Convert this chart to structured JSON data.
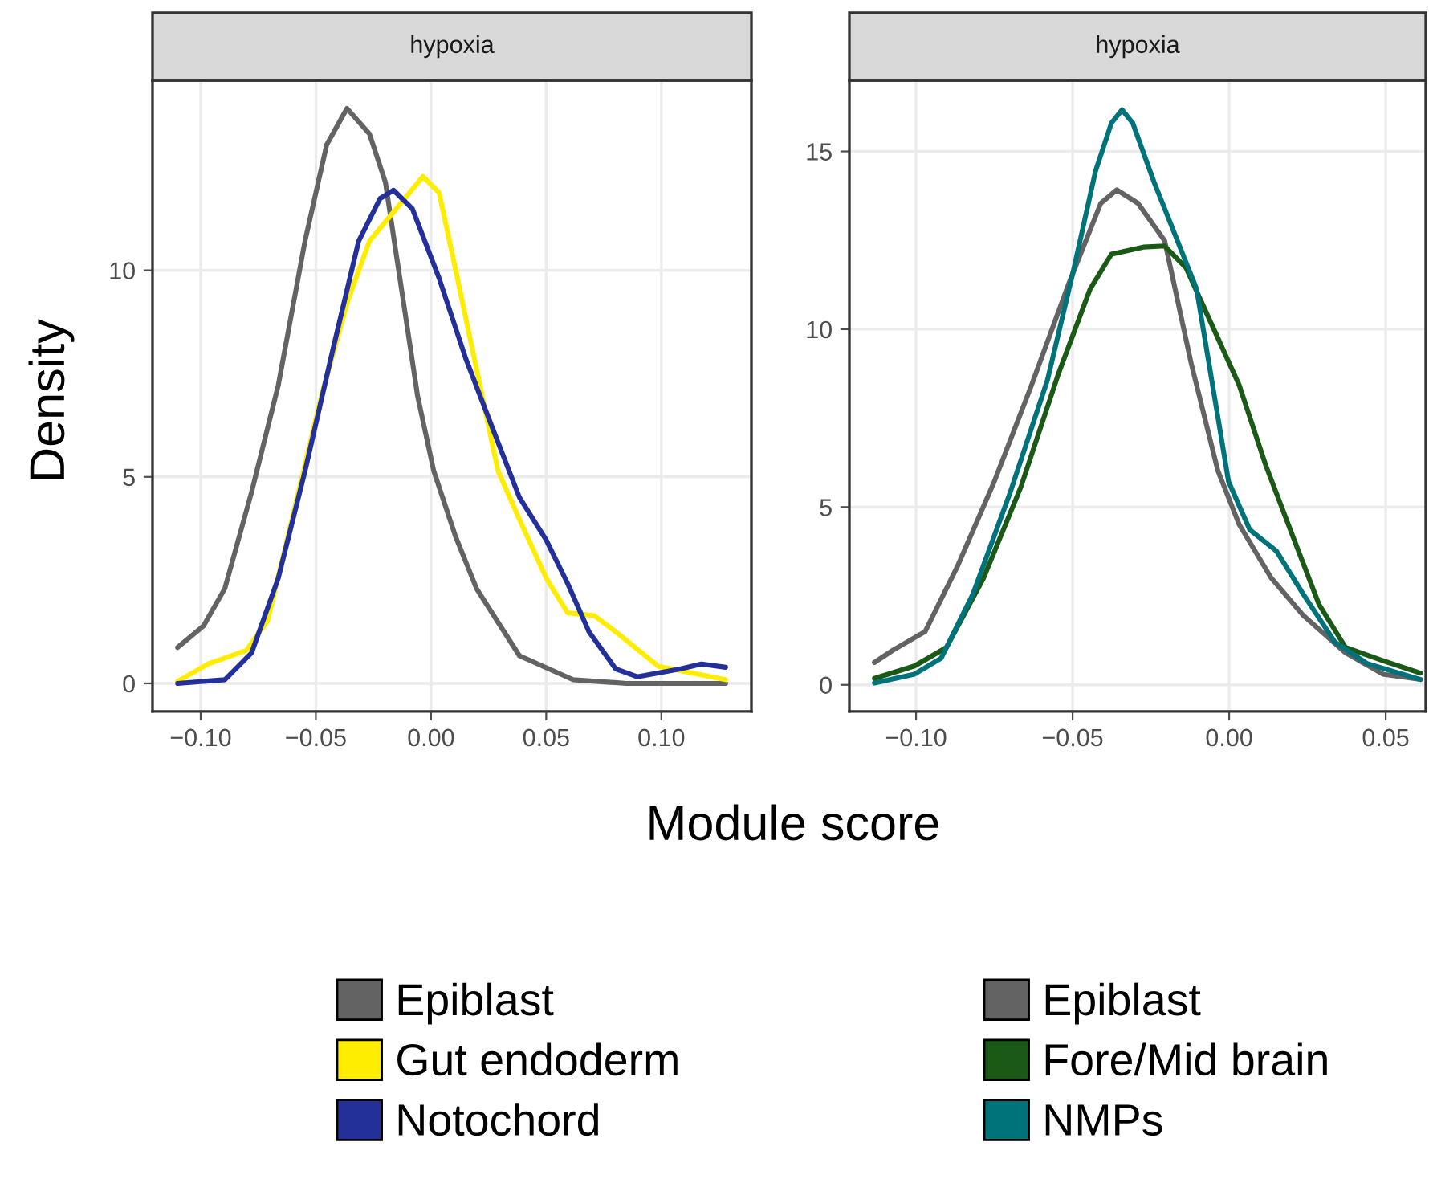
{
  "chart_data": [
    {
      "type": "line",
      "title": "hypoxia",
      "xlabel": "Module score",
      "ylabel": "Density",
      "legend": "bottom",
      "grid": true,
      "xlim": [
        -0.1209,
        0.1391
      ],
      "ylim": [
        -0.68,
        14.6
      ],
      "xticks": [
        {
          "value": -0.1,
          "label": "−0.10"
        },
        {
          "value": -0.05,
          "label": "−0.05"
        },
        {
          "value": 0.0,
          "label": "0.00"
        },
        {
          "value": 0.05,
          "label": "0.05"
        },
        {
          "value": 0.1,
          "label": "0.10"
        }
      ],
      "yticks": [
        0,
        5,
        10
      ],
      "series": [
        {
          "name": "Epiblast",
          "color": "#636363",
          "x": [
            -0.11,
            -0.0988,
            -0.0895,
            -0.0779,
            -0.0663,
            -0.0547,
            -0.0453,
            -0.0365,
            -0.0267,
            -0.0198,
            -0.0128,
            -0.0058,
            0.0012,
            0.0105,
            0.0198,
            0.0384,
            0.0616,
            0.0849,
            0.1279
          ],
          "values": [
            0.87,
            1.39,
            2.3,
            4.63,
            7.22,
            10.71,
            13.04,
            13.92,
            13.3,
            12.13,
            9.54,
            6.95,
            5.14,
            3.58,
            2.29,
            0.67,
            0.09,
            0,
            0
          ]
        },
        {
          "name": "Gut endoderm",
          "color": "#ffed00",
          "x": [
            -0.11,
            -0.0965,
            -0.0802,
            -0.0709,
            -0.0593,
            -0.0477,
            -0.036,
            -0.0267,
            -0.0151,
            -0.0035,
            0.0035,
            0.0105,
            0.0198,
            0.0291,
            0.0384,
            0.05,
            0.0593,
            0.0709,
            0.0802,
            0.0988,
            0.1279
          ],
          "values": [
            0.05,
            0.48,
            0.8,
            1.52,
            4.22,
            6.94,
            9.29,
            10.71,
            11.49,
            12.27,
            11.88,
            10.06,
            7.6,
            5.14,
            3.97,
            2.55,
            1.71,
            1.64,
            1.25,
            0.41,
            0.09
          ]
        },
        {
          "name": "Notochord",
          "color": "#24309a",
          "x": [
            -0.11,
            -0.0895,
            -0.0779,
            -0.0663,
            -0.0547,
            -0.043,
            -0.0314,
            -0.0221,
            -0.0163,
            -0.0081,
            0.0035,
            0.0151,
            0.0267,
            0.0384,
            0.05,
            0.0593,
            0.0686,
            0.0802,
            0.0895,
            0.1081,
            0.1174,
            0.1279
          ],
          "values": [
            0,
            0.09,
            0.74,
            2.55,
            5.14,
            7.99,
            10.71,
            11.74,
            11.94,
            11.49,
            9.81,
            7.86,
            6.18,
            4.5,
            3.47,
            2.42,
            1.25,
            0.35,
            0.16,
            0.35,
            0.47,
            0.39
          ]
        }
      ]
    },
    {
      "type": "line",
      "title": "hypoxia",
      "legend": "bottom",
      "grid": true,
      "xlim": [
        -0.1213,
        0.0628
      ],
      "ylim": [
        -0.75,
        17.0
      ],
      "xticks": [
        {
          "value": -0.1,
          "label": "−0.10"
        },
        {
          "value": -0.05,
          "label": "−0.05"
        },
        {
          "value": 0.0,
          "label": "0.00"
        },
        {
          "value": 0.05,
          "label": "0.05"
        }
      ],
      "yticks": [
        0,
        5,
        10,
        15
      ],
      "series": [
        {
          "name": "Epiblast",
          "color": "#636363",
          "x": [
            -0.1133,
            -0.1073,
            -0.0971,
            -0.0869,
            -0.075,
            -0.0631,
            -0.0512,
            -0.041,
            -0.0359,
            -0.0291,
            -0.0206,
            -0.0121,
            -0.0036,
            0.0032,
            0.0134,
            0.0236,
            0.0372,
            0.0491,
            0.0611
          ],
          "values": [
            0.63,
            0.98,
            1.5,
            3.31,
            5.72,
            8.43,
            11.29,
            13.54,
            13.92,
            13.54,
            12.49,
            9.03,
            6.02,
            4.51,
            3.01,
            1.96,
            0.9,
            0.3,
            0.15
          ]
        },
        {
          "name": "Fore/Mid brain",
          "color": "#1a5a16",
          "x": [
            -0.1133,
            -0.1005,
            -0.0903,
            -0.0784,
            -0.0665,
            -0.0546,
            -0.0444,
            -0.0376,
            -0.0274,
            -0.0206,
            -0.0138,
            -0.0053,
            0.0032,
            0.0117,
            0.0202,
            0.0287,
            0.0372,
            0.0491,
            0.0611
          ],
          "values": [
            0.18,
            0.53,
            1.05,
            3.01,
            5.57,
            8.73,
            11.13,
            12.11,
            12.31,
            12.34,
            11.73,
            10.08,
            8.43,
            6.17,
            4.21,
            2.26,
            1.05,
            0.68,
            0.33
          ]
        },
        {
          "name": "NMPs",
          "color": "#00727a",
          "x": [
            -0.1133,
            -0.1005,
            -0.092,
            -0.0818,
            -0.0699,
            -0.058,
            -0.0495,
            -0.0427,
            -0.0376,
            -0.0342,
            -0.0308,
            -0.024,
            -0.0172,
            -0.0104,
            -0.0053,
            -0.0002,
            0.0066,
            0.0151,
            0.0236,
            0.0338,
            0.044,
            0.0611
          ],
          "values": [
            0.05,
            0.3,
            0.75,
            2.56,
            5.42,
            8.58,
            11.74,
            14.44,
            15.8,
            16.17,
            15.8,
            14.14,
            12.64,
            11.13,
            8.43,
            5.72,
            4.36,
            3.76,
            2.56,
            1.2,
            0.6,
            0.15
          ]
        }
      ]
    }
  ]
}
